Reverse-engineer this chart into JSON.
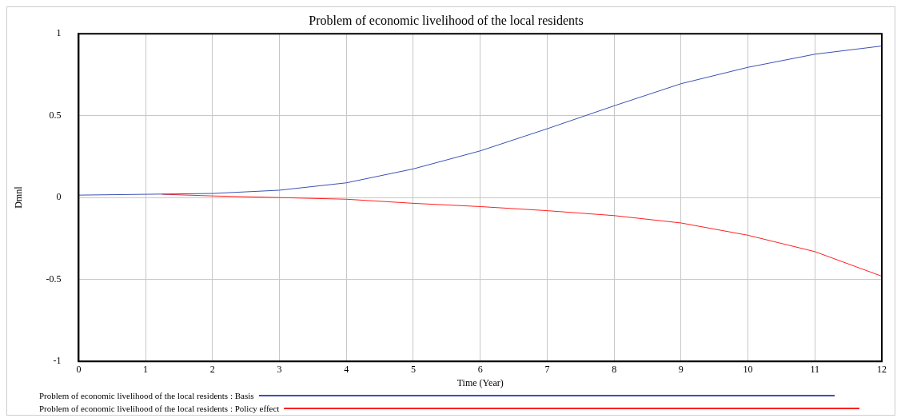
{
  "chart_data": {
    "type": "line",
    "title": "Problem of economic livelihood of the local residents",
    "xlabel": "Time (Year)",
    "ylabel": "Dmnl",
    "xlim": [
      0,
      12
    ],
    "xticks": [
      0,
      1,
      2,
      3,
      4,
      5,
      6,
      7,
      8,
      9,
      10,
      11,
      12
    ],
    "ylim": [
      -1,
      1
    ],
    "yticks": [
      -1,
      -0.5,
      0,
      0.5,
      1
    ],
    "grid": true,
    "legend": "bottom",
    "marker": "none",
    "series": [
      {
        "name": "Problem of economic livelihood of the local residents : Basis",
        "color": "#3c50b4",
        "x": [
          0,
          1,
          2,
          3,
          4,
          5,
          6,
          7,
          8,
          9,
          10,
          11,
          12
        ],
        "values": [
          0.015,
          0.02,
          0.025,
          0.045,
          0.09,
          0.175,
          0.285,
          0.42,
          0.56,
          0.695,
          0.795,
          0.875,
          0.925
        ]
      },
      {
        "name": "Problem of economic livelihood of the local residents : Policy effect",
        "color": "#ff2020",
        "x": [
          1.25,
          2,
          3,
          4,
          5,
          6,
          7,
          8,
          9,
          10,
          11,
          12
        ],
        "values": [
          0.02,
          0.01,
          0,
          -0.01,
          -0.035,
          -0.055,
          -0.08,
          -0.11,
          -0.155,
          -0.23,
          -0.33,
          -0.48
        ]
      }
    ]
  }
}
